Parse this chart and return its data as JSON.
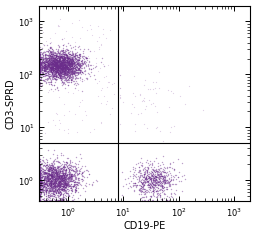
{
  "title": "",
  "xlabel": "CD19-PE",
  "ylabel": "CD3-SPRD",
  "xmin": 0.3,
  "xmax": 2000,
  "ymin": 0.4,
  "ymax": 2000,
  "gate_x": 8.0,
  "gate_y": 5.0,
  "dot_color": "#6B2D8B",
  "dot_color_light": "#9B6BB0",
  "dot_alpha": 0.45,
  "dot_size": 1.0,
  "background_color": "#ffffff",
  "n_cd3pos_cd19neg": 2800,
  "n_cd3neg_cd19neg": 2000,
  "n_cd3neg_cd19pos": 700,
  "n_scatter_topright": 60,
  "n_sparse": 120
}
